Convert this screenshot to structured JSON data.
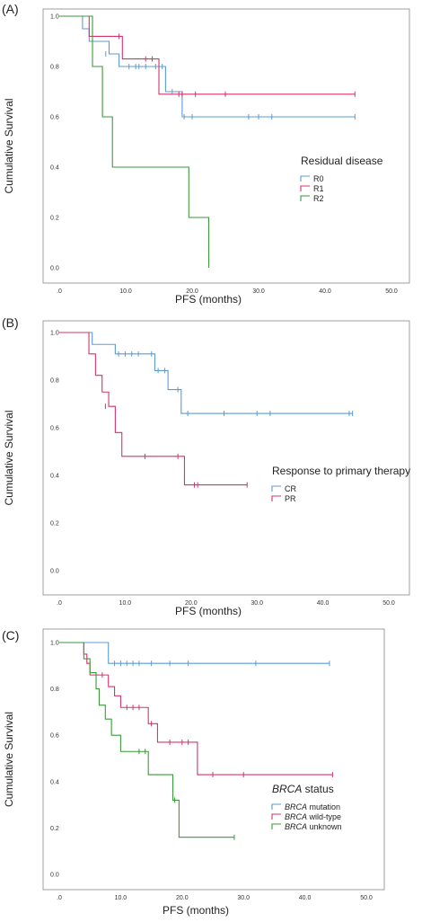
{
  "chart_data": [
    {
      "type": "line",
      "panel_label": "(A)",
      "xlabel": "PFS (months)",
      "ylabel": "Cumulative Survival",
      "xlim": [
        0,
        50
      ],
      "ylim": [
        0,
        1
      ],
      "x_ticks": [
        ".0",
        "10.0",
        "20.0",
        "30.0",
        "40.0",
        "50.0"
      ],
      "y_ticks": [
        "0.0",
        "0.2",
        "0.4",
        "0.6",
        "0.8",
        "1.0"
      ],
      "legend_title": "Residual disease",
      "legend_title_italic_prefix": "",
      "legend_position": "right-middle",
      "series": [
        {
          "name": "R0",
          "name_italic_prefix": "",
          "color": "#5b9bd5",
          "steps": [
            [
              0,
              1.0
            ],
            [
              3.5,
              0.95
            ],
            [
              4.5,
              0.9
            ],
            [
              7.5,
              0.85
            ],
            [
              9,
              0.8
            ],
            [
              16,
              0.7
            ],
            [
              18.5,
              0.6
            ],
            [
              44.5,
              0.6
            ]
          ],
          "censored": [
            [
              7,
              0.85
            ],
            [
              10.5,
              0.8
            ],
            [
              11.5,
              0.8
            ],
            [
              12,
              0.8
            ],
            [
              13,
              0.8
            ],
            [
              14.5,
              0.8
            ],
            [
              15.5,
              0.8
            ],
            [
              17,
              0.7
            ],
            [
              18.8,
              0.6
            ],
            [
              20,
              0.6
            ],
            [
              28.5,
              0.6
            ],
            [
              30,
              0.6
            ],
            [
              32,
              0.6
            ],
            [
              44.5,
              0.6
            ]
          ]
        },
        {
          "name": "R1",
          "name_italic_prefix": "",
          "color": "#d6336c",
          "steps": [
            [
              0,
              1.0
            ],
            [
              4.5,
              0.92
            ],
            [
              9.5,
              0.83
            ],
            [
              15,
              0.69
            ],
            [
              44.5,
              0.69
            ]
          ],
          "censored": [
            [
              9,
              0.92
            ],
            [
              13,
              0.83
            ],
            [
              14,
              0.83
            ],
            [
              18,
              0.69
            ],
            [
              18.5,
              0.69
            ],
            [
              20.5,
              0.69
            ],
            [
              25,
              0.69
            ],
            [
              44.5,
              0.69
            ]
          ]
        },
        {
          "name": "R2",
          "name_italic_prefix": "",
          "color": "#3a9a3a",
          "steps": [
            [
              0,
              1.0
            ],
            [
              5,
              0.8
            ],
            [
              6.5,
              0.6
            ],
            [
              8,
              0.4
            ],
            [
              19.5,
              0.2
            ],
            [
              22.5,
              0.0
            ]
          ],
          "censored": []
        }
      ]
    },
    {
      "type": "line",
      "panel_label": "(B)",
      "xlabel": "PFS (months)",
      "ylabel": "Cumulative Survival",
      "xlim": [
        0,
        50
      ],
      "ylim": [
        0,
        1
      ],
      "x_ticks": [
        ".0",
        "10.0",
        "20.0",
        "30.0",
        "40.0",
        "50.0"
      ],
      "y_ticks": [
        "0.0",
        "0.2",
        "0.4",
        "0.6",
        "0.8",
        "1.0"
      ],
      "legend_title": "Response to primary therapy",
      "legend_title_italic_prefix": "",
      "legend_position": "right-middle",
      "series": [
        {
          "name": "CR",
          "name_italic_prefix": "",
          "color": "#5b9bd5",
          "steps": [
            [
              0,
              1.0
            ],
            [
              5,
              0.95
            ],
            [
              8.5,
              0.91
            ],
            [
              14.5,
              0.84
            ],
            [
              16.5,
              0.76
            ],
            [
              18.5,
              0.66
            ],
            [
              44.5,
              0.66
            ]
          ],
          "censored": [
            [
              9,
              0.91
            ],
            [
              10,
              0.91
            ],
            [
              11,
              0.91
            ],
            [
              12,
              0.91
            ],
            [
              14,
              0.91
            ],
            [
              15,
              0.84
            ],
            [
              16,
              0.84
            ],
            [
              18,
              0.76
            ],
            [
              19.5,
              0.66
            ],
            [
              25,
              0.66
            ],
            [
              30,
              0.66
            ],
            [
              32,
              0.66
            ],
            [
              44,
              0.66
            ],
            [
              44.5,
              0.66
            ]
          ]
        },
        {
          "name": "PR",
          "name_italic_prefix": "",
          "color": "#d6336c",
          "steps": [
            [
              0,
              1.0
            ],
            [
              4.5,
              0.91
            ],
            [
              5.5,
              0.82
            ],
            [
              6.5,
              0.75
            ],
            [
              7.5,
              0.69
            ],
            [
              8.5,
              0.58
            ],
            [
              9.5,
              0.48
            ],
            [
              19,
              0.36
            ],
            [
              28.5,
              0.36
            ]
          ],
          "censored": [
            [
              7,
              0.69
            ],
            [
              13,
              0.48
            ],
            [
              18,
              0.48
            ],
            [
              20.5,
              0.36
            ],
            [
              21,
              0.36
            ],
            [
              28.5,
              0.36
            ]
          ]
        }
      ]
    },
    {
      "type": "line",
      "panel_label": "(C)",
      "xlabel": "PFS (months)",
      "ylabel": "Cumulative Survival",
      "xlim": [
        0,
        50
      ],
      "ylim": [
        0,
        1
      ],
      "x_ticks": [
        ".0",
        "10.0",
        "20.0",
        "30.0",
        "40.0",
        "50.0"
      ],
      "y_ticks": [
        "0.0",
        "0.2",
        "0.4",
        "0.6",
        "0.8",
        "1.0"
      ],
      "legend_title": " status",
      "legend_title_italic_prefix": "BRCA",
      "legend_position": "right-bottom",
      "series": [
        {
          "name": " mutation",
          "name_italic_prefix": "BRCA",
          "color": "#5b9bd5",
          "steps": [
            [
              0,
              1.0
            ],
            [
              8,
              0.91
            ],
            [
              44,
              0.91
            ]
          ],
          "censored": [
            [
              9,
              0.91
            ],
            [
              10,
              0.91
            ],
            [
              11,
              0.91
            ],
            [
              12,
              0.91
            ],
            [
              13,
              0.91
            ],
            [
              15,
              0.91
            ],
            [
              18,
              0.91
            ],
            [
              21,
              0.91
            ],
            [
              32,
              0.91
            ],
            [
              44,
              0.91
            ]
          ]
        },
        {
          "name": " wild-type",
          "name_italic_prefix": "BRCA",
          "color": "#d6336c",
          "steps": [
            [
              0,
              1.0
            ],
            [
              4,
              0.95
            ],
            [
              4.5,
              0.91
            ],
            [
              5,
              0.86
            ],
            [
              8,
              0.81
            ],
            [
              9,
              0.77
            ],
            [
              10,
              0.72
            ],
            [
              14.5,
              0.65
            ],
            [
              16,
              0.57
            ],
            [
              22.5,
              0.43
            ],
            [
              44.5,
              0.43
            ]
          ],
          "censored": [
            [
              7,
              0.86
            ],
            [
              11,
              0.72
            ],
            [
              12,
              0.72
            ],
            [
              13,
              0.72
            ],
            [
              15,
              0.65
            ],
            [
              18,
              0.57
            ],
            [
              20,
              0.57
            ],
            [
              21,
              0.57
            ],
            [
              25,
              0.43
            ],
            [
              30,
              0.43
            ],
            [
              44.5,
              0.43
            ]
          ]
        },
        {
          "name": " unknown",
          "name_italic_prefix": "BRCA",
          "color": "#3a9a3a",
          "steps": [
            [
              0,
              1.0
            ],
            [
              4,
              0.93
            ],
            [
              5,
              0.87
            ],
            [
              6,
              0.8
            ],
            [
              6.5,
              0.73
            ],
            [
              7.5,
              0.67
            ],
            [
              8.5,
              0.6
            ],
            [
              10,
              0.53
            ],
            [
              14.5,
              0.43
            ],
            [
              18.5,
              0.32
            ],
            [
              19.5,
              0.16
            ],
            [
              28.5,
              0.16
            ]
          ],
          "censored": [
            [
              13,
              0.53
            ],
            [
              14,
              0.53
            ],
            [
              18.8,
              0.32
            ],
            [
              28.5,
              0.16
            ]
          ]
        }
      ]
    }
  ]
}
